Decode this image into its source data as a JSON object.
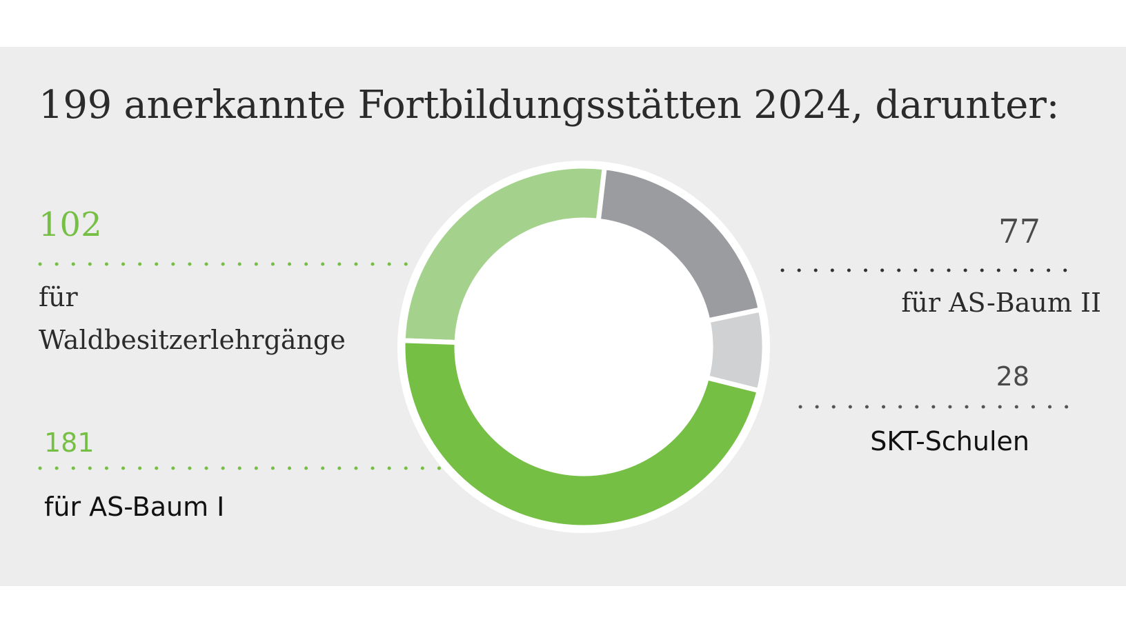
{
  "title": "199 anerkannte Fortbildungsstätten 2024, darunter:",
  "colors": {
    "background": "#ededed",
    "light_green": "#a4d28c",
    "green": "#76bf45",
    "dark_grey": "#9b9c9f",
    "light_grey": "#d0d1d3",
    "value_green": "#76bf45",
    "value_grey": "#4a4a4a"
  },
  "chart_data": {
    "type": "pie",
    "style": "donut",
    "slices": [
      {
        "label": "für Waldbesitzerlehrgänge",
        "value": 102,
        "color": "#a4d28c"
      },
      {
        "label": "für  AS-Baum II",
        "value": 77,
        "color": "#9b9c9f"
      },
      {
        "label": "SKT-Schulen",
        "value": 28,
        "color": "#d0d1d3"
      },
      {
        "label": "für AS-Baum I",
        "value": 181,
        "color": "#76bf45"
      }
    ]
  },
  "labels": {
    "waldbesitzer": {
      "value": "102",
      "line1": "für",
      "line2": "Waldbesitzerlehrgänge"
    },
    "asbaum2": {
      "value": "77",
      "text": "für  AS-Baum II"
    },
    "skt": {
      "value": "28",
      "text": "SKT-Schulen"
    },
    "asbaum1": {
      "value": "181",
      "text": "für AS-Baum I"
    }
  }
}
